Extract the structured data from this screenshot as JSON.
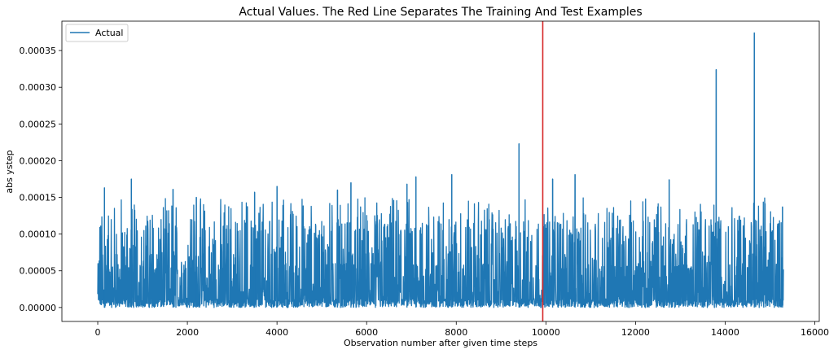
{
  "chart_data": {
    "type": "line",
    "title": "Actual Values. The Red Line Separates The Training And Test Examples",
    "xlabel": "Observation number after given time steps",
    "ylabel": "abs ystep",
    "xlim": [
      -800,
      16100
    ],
    "ylim": [
      -1.9e-05,
      0.00039
    ],
    "x_ticks": [
      0,
      2000,
      4000,
      6000,
      8000,
      10000,
      12000,
      14000,
      16000
    ],
    "x_tick_labels": [
      "0",
      "2000",
      "4000",
      "6000",
      "8000",
      "10000",
      "12000",
      "14000",
      "16000"
    ],
    "y_ticks": [
      0,
      5e-05,
      0.0001,
      0.00015,
      0.0002,
      0.00025,
      0.0003,
      0.00035
    ],
    "y_tick_labels": [
      "0.00000",
      "0.00005",
      "0.00010",
      "0.00015",
      "0.00020",
      "0.00025",
      "0.00030",
      "0.00035"
    ],
    "legend": {
      "position": "top-left",
      "entries": [
        "Actual"
      ]
    },
    "grid": false,
    "series": [
      {
        "name": "Actual",
        "color": "#1f77b4",
        "x_range": [
          0,
          15300
        ],
        "notable_peaks": [
          {
            "x": 150,
            "y": 0.000163
          },
          {
            "x": 750,
            "y": 0.000175
          },
          {
            "x": 1680,
            "y": 0.000161
          },
          {
            "x": 2200,
            "y": 0.00015
          },
          {
            "x": 3500,
            "y": 0.000157
          },
          {
            "x": 4000,
            "y": 0.000165
          },
          {
            "x": 5350,
            "y": 0.00016
          },
          {
            "x": 5650,
            "y": 0.00017
          },
          {
            "x": 6900,
            "y": 0.000168
          },
          {
            "x": 7100,
            "y": 0.000178
          },
          {
            "x": 7900,
            "y": 0.000181
          },
          {
            "x": 9400,
            "y": 0.000223
          },
          {
            "x": 10150,
            "y": 0.000175
          },
          {
            "x": 10650,
            "y": 0.000181
          },
          {
            "x": 12750,
            "y": 0.000174
          },
          {
            "x": 13800,
            "y": 0.000324
          },
          {
            "x": 14650,
            "y": 0.000374
          },
          {
            "x": 15280,
            "y": 0.000137
          }
        ]
      }
    ],
    "split_line": {
      "x": 9930,
      "color": "#d62728"
    }
  }
}
